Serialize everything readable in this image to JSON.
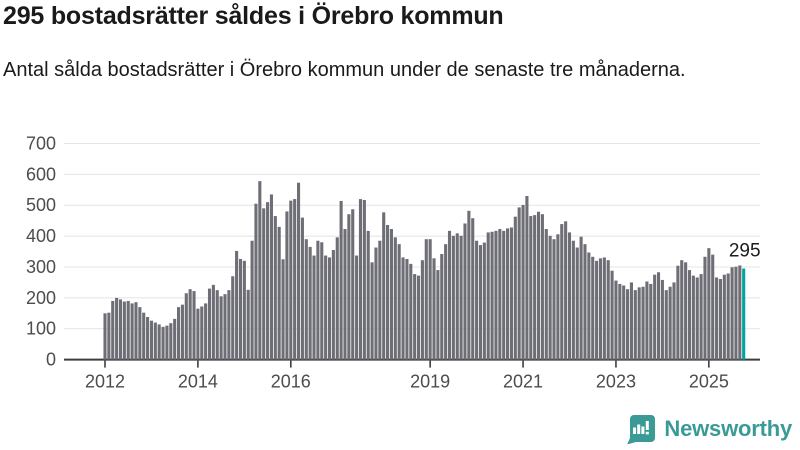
{
  "header": {
    "title": "295 bostadsrätter såldes i Örebro kommun",
    "subtitle": "Antal sålda bostadsrätter i Örebro kommun under de senaste tre månaderna."
  },
  "chart_data": {
    "type": "bar",
    "title": "295 bostadsrätter såldes i Örebro kommun",
    "xlabel": "",
    "ylabel": "",
    "ylim": [
      0,
      700
    ],
    "yticks": [
      0,
      100,
      200,
      300,
      400,
      500,
      600,
      700
    ],
    "xtick_labels": [
      "2012",
      "2014",
      "2016",
      "2019",
      "2021",
      "2023",
      "2025"
    ],
    "xtick_years": [
      2012,
      2014,
      2016,
      2019,
      2021,
      2023,
      2025
    ],
    "x_monthly_start": "2012-01",
    "x_monthly_end": "2025-10",
    "grid": true,
    "legend_position": "none",
    "bar_color": "#6E6E76",
    "highlight_color": "#00A39E",
    "axis_label_color": "#4d4d4d",
    "gridline_color": "#e4e4e4",
    "baseline_color": "#3d3d3d",
    "annotation_label": "295",
    "highlight_index": 165,
    "highlight_value": 295,
    "values": [
      150,
      152,
      190,
      200,
      195,
      188,
      190,
      182,
      186,
      170,
      152,
      138,
      126,
      120,
      114,
      106,
      110,
      118,
      132,
      170,
      178,
      215,
      228,
      222,
      165,
      172,
      182,
      230,
      242,
      225,
      205,
      212,
      225,
      270,
      352,
      326,
      320,
      226,
      385,
      505,
      578,
      490,
      510,
      535,
      465,
      430,
      325,
      480,
      515,
      520,
      573,
      460,
      390,
      365,
      337,
      385,
      380,
      337,
      331,
      355,
      396,
      514,
      423,
      471,
      487,
      337,
      520,
      517,
      417,
      315,
      363,
      385,
      477,
      436,
      423,
      396,
      374,
      331,
      326,
      310,
      277,
      272,
      322,
      390,
      390,
      328,
      290,
      342,
      374,
      417,
      401,
      409,
      401,
      441,
      482,
      458,
      385,
      371,
      379,
      412,
      414,
      417,
      423,
      417,
      425,
      428,
      463,
      493,
      501,
      530,
      465,
      468,
      479,
      471,
      423,
      401,
      390,
      406,
      439,
      448,
      412,
      385,
      363,
      398,
      374,
      347,
      333,
      320,
      328,
      331,
      322,
      288,
      256,
      245,
      240,
      228,
      250,
      225,
      234,
      236,
      253,
      245,
      275,
      283,
      258,
      225,
      236,
      250,
      304,
      322,
      315,
      290,
      272,
      266,
      277,
      333,
      361,
      340,
      266,
      261,
      275,
      279,
      299,
      301,
      305,
      295
    ]
  },
  "footer": {
    "brand": "Newsworthy",
    "brand_color": "#3A9B96",
    "icon": "newsworthy-logo-icon"
  }
}
